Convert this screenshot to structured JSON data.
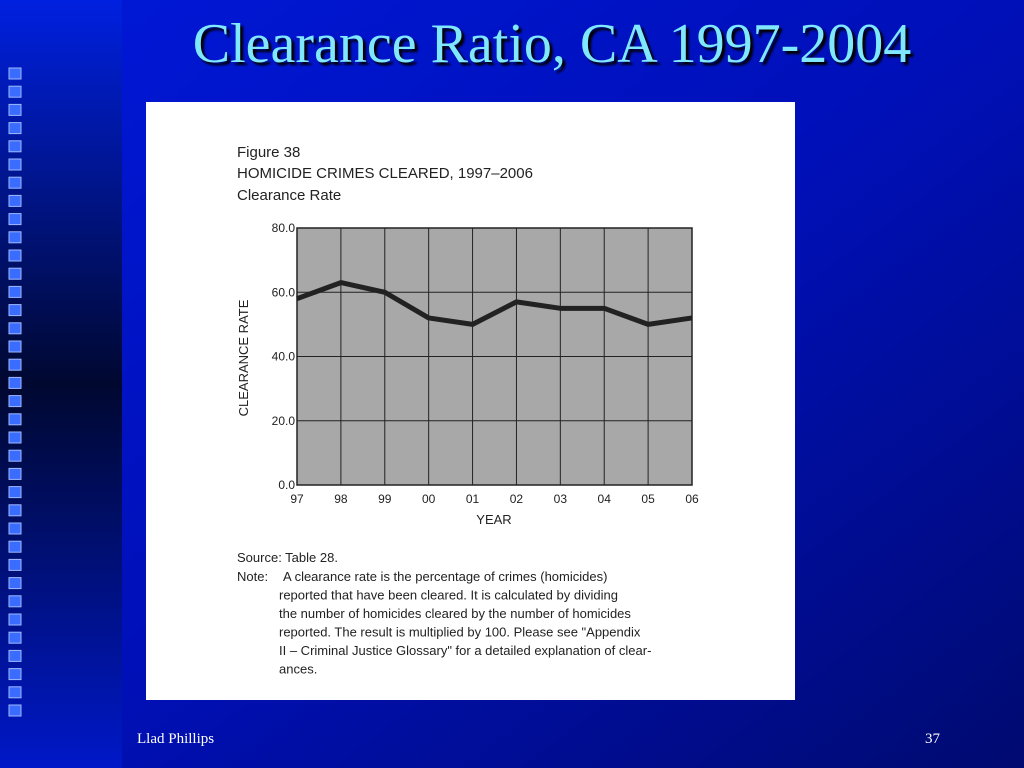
{
  "slide": {
    "title": "Clearance Ratio, CA 1997-2004",
    "footer_left": "Llad Phillips",
    "page_number": "37"
  },
  "chart_data": {
    "type": "line",
    "figure_label": "Figure 38",
    "title": "HOMICIDE CRIMES CLEARED, 1997–2006",
    "subtitle": "Clearance Rate",
    "ylabel": "CLEARANCE RATE",
    "xlabel": "YEAR",
    "categories": [
      "97",
      "98",
      "99",
      "00",
      "01",
      "02",
      "03",
      "04",
      "05",
      "06"
    ],
    "values": [
      58,
      63,
      60,
      52,
      50,
      57,
      55,
      55,
      50,
      52
    ],
    "color": "#222222",
    "ylim": [
      0,
      80
    ],
    "yticks": [
      {
        "value": 0,
        "label": "0.0"
      },
      {
        "value": 20,
        "label": "20.0"
      },
      {
        "value": 40,
        "label": "40.0"
      },
      {
        "value": 60,
        "label": "60.0"
      },
      {
        "value": 80,
        "label": "80.0"
      }
    ],
    "grid": true,
    "source": "Source: Table 28.",
    "note_label": "Note:",
    "note_lines": [
      "A clearance rate is the percentage of crimes (homicides)",
      "reported that have been cleared.  It is calculated by dividing",
      "the number of homicides cleared by the number of homicides",
      "reported.  The result is multiplied by 100.  Please see \"Appendix",
      "II – Criminal Justice Glossary\" for a detailed explanation of clear-",
      "ances."
    ]
  }
}
